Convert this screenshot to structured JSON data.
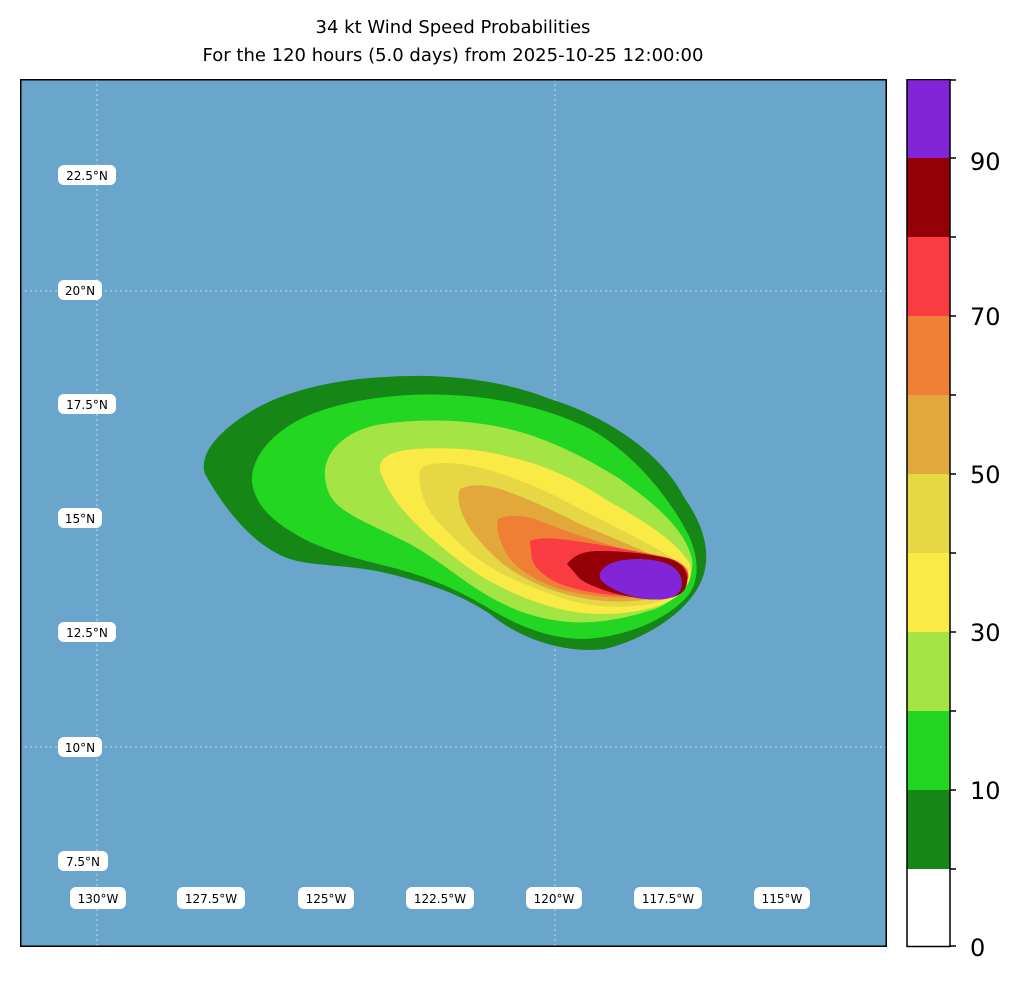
{
  "title": {
    "line1": "34 kt Wind Speed Probabilities",
    "line2": "For the 120 hours (5.0 days) from 2025-10-25 12:00:00"
  },
  "map": {
    "ocean_color": "#6aa6cc",
    "lat_labels": [
      "22.5°N",
      "20°N",
      "17.5°N",
      "15°N",
      "12.5°N",
      "10°N",
      "7.5°N"
    ],
    "lon_labels": [
      "130°W",
      "127.5°W",
      "125°W",
      "122.5°W",
      "120°W",
      "117.5°W",
      "115°W"
    ]
  },
  "colorbar": {
    "ticks": [
      "0",
      "10",
      "30",
      "50",
      "70",
      "90"
    ],
    "levels": [
      {
        "range": "0-10",
        "color": "#ffffff"
      },
      {
        "range": "10-20",
        "color": "#168716"
      },
      {
        "range": "20-30",
        "color": "#22d622"
      },
      {
        "range": "30-40",
        "color": "#a4e444"
      },
      {
        "range": "40-50",
        "color": "#f9ea46"
      },
      {
        "range": "50-60",
        "color": "#e5d844"
      },
      {
        "range": "60-70",
        "color": "#e3a83c"
      },
      {
        "range": "70-80",
        "color": "#ee7f34"
      },
      {
        "range": "80-90",
        "color": "#f83c42"
      },
      {
        "range": "90-100",
        "color": "#930006"
      },
      {
        "range": "100+",
        "color": "#8224d8"
      }
    ]
  }
}
